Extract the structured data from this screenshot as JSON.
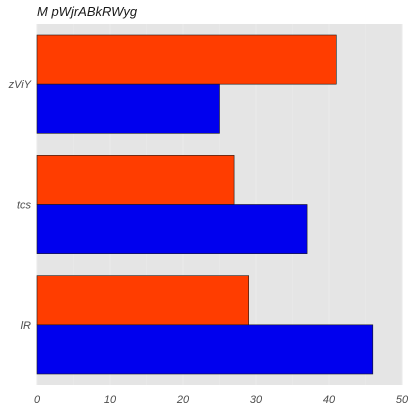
{
  "chart_data": {
    "type": "bar",
    "orientation": "horizontal",
    "title": "M pWjrABkRWyg",
    "xlabel": "",
    "ylabel": "",
    "categories": [
      "zViY",
      "tcs",
      "lR"
    ],
    "series": [
      {
        "values": [
          41,
          27,
          29
        ],
        "color": "#ff3d00"
      },
      {
        "values": [
          25,
          37,
          46
        ],
        "color": "#0000ee"
      }
    ],
    "xlim": [
      0,
      50
    ],
    "xticks": [
      0,
      10,
      20,
      30,
      40,
      50
    ],
    "grid": true,
    "legend": "none",
    "colors": {
      "panel": "#e5e5e5",
      "grid": "#ebebeb"
    }
  }
}
